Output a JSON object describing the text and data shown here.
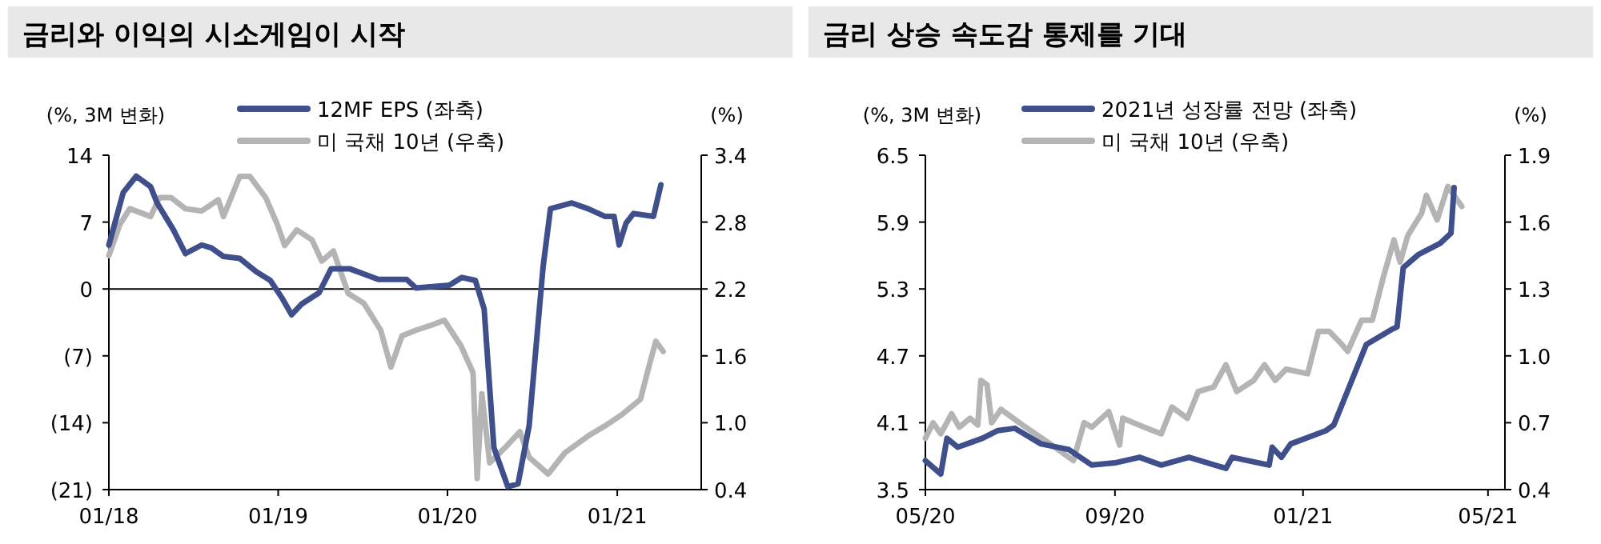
{
  "chart_data": [
    {
      "type": "line",
      "title": "금리와 이익의 시소게임이 시작",
      "ylabel": "(%, 3M 변화)",
      "y2label": "(%)",
      "legend": "top",
      "xlim": [
        "2018-01-01",
        "2021-07-01"
      ],
      "xticks": [
        {
          "value": "2018-01-01",
          "label": "01/18"
        },
        {
          "value": "2019-01-01",
          "label": "01/19"
        },
        {
          "value": "2020-01-01",
          "label": "01/20"
        },
        {
          "value": "2021-01-01",
          "label": "01/21"
        }
      ],
      "ylim": [
        -21,
        14
      ],
      "yticks": [
        {
          "value": -21,
          "label": "(21)"
        },
        {
          "value": -14,
          "label": "(14)"
        },
        {
          "value": -7,
          "label": "(7)"
        },
        0,
        7,
        14
      ],
      "y2lim": [
        0.4,
        3.4
      ],
      "y2ticks": [
        {
          "value": 0.4,
          "label": "0.4"
        },
        {
          "value": 1.0,
          "label": "1.0"
        },
        {
          "value": 1.6,
          "label": "1.6"
        },
        {
          "value": 2.2,
          "label": "2.2"
        },
        {
          "value": 2.8,
          "label": "2.8"
        },
        {
          "value": 3.4,
          "label": "3.4"
        }
      ],
      "ref_lines": [
        {
          "axis": "y",
          "value": 0,
          "color": "#000000"
        }
      ],
      "series": [
        {
          "name": "12MF EPS (좌축)",
          "color": "#3f4f8c",
          "x": [
            "2018-01-01",
            "2018-02-01",
            "2018-03-01",
            "2018-04-01",
            "2018-04-15",
            "2018-05-20",
            "2018-06-15",
            "2018-07-20",
            "2018-08-10",
            "2018-09-05",
            "2018-10-10",
            "2018-11-15",
            "2018-12-15",
            "2019-01-10",
            "2019-01-30",
            "2019-02-20",
            "2019-03-30",
            "2019-04-25",
            "2019-06-05",
            "2019-08-05",
            "2019-10-05",
            "2019-10-25",
            "2020-01-05",
            "2020-02-01",
            "2020-03-01",
            "2020-03-20",
            "2020-04-10",
            "2020-05-10",
            "2020-06-01",
            "2020-06-25",
            "2020-07-25",
            "2020-08-10",
            "2020-09-25",
            "2020-10-30",
            "2020-12-05",
            "2020-12-25",
            "2021-01-05",
            "2021-01-20",
            "2021-02-05",
            "2021-03-20",
            "2021-04-05"
          ],
          "values": [
            4.6,
            10.1,
            11.8,
            10.7,
            9.0,
            6.2,
            3.7,
            4.6,
            4.3,
            3.4,
            3.2,
            1.8,
            0.9,
            -1.0,
            -2.7,
            -1.6,
            -0.4,
            2.1,
            2.1,
            1.0,
            1.0,
            0.1,
            0.4,
            1.2,
            0.9,
            -2.1,
            -16.6,
            -20.7,
            -20.4,
            -14.3,
            2.3,
            8.4,
            9.0,
            8.4,
            7.6,
            7.6,
            4.6,
            6.9,
            7.9,
            7.6,
            10.9
          ]
        },
        {
          "name": "미 국채 10년 (우축)",
          "color": "#b4b4b4",
          "axis": "y2",
          "x": [
            "2018-01-01",
            "2018-01-25",
            "2018-02-15",
            "2018-04-01",
            "2018-04-20",
            "2018-05-15",
            "2018-06-15",
            "2018-07-20",
            "2018-08-25",
            "2018-09-05",
            "2018-10-10",
            "2018-11-01",
            "2018-12-05",
            "2018-12-30",
            "2019-01-15",
            "2019-02-10",
            "2019-03-15",
            "2019-04-05",
            "2019-04-30",
            "2019-06-01",
            "2019-07-05",
            "2019-08-10",
            "2019-09-01",
            "2019-09-25",
            "2019-10-25",
            "2019-12-01",
            "2019-12-25",
            "2020-01-30",
            "2020-02-25",
            "2020-03-05",
            "2020-03-15",
            "2020-04-01",
            "2020-05-05",
            "2020-06-05",
            "2020-06-25",
            "2020-08-05",
            "2020-09-10",
            "2020-10-30",
            "2020-12-05",
            "2021-01-10",
            "2021-02-20",
            "2021-03-10",
            "2021-03-25",
            "2021-04-10"
          ],
          "values": [
            2.5,
            2.78,
            2.92,
            2.85,
            3.02,
            3.02,
            2.92,
            2.9,
            3.0,
            2.85,
            3.21,
            3.21,
            3.02,
            2.78,
            2.59,
            2.73,
            2.64,
            2.45,
            2.54,
            2.16,
            2.07,
            1.83,
            1.5,
            1.78,
            1.83,
            1.88,
            1.92,
            1.69,
            1.45,
            0.5,
            1.26,
            0.64,
            0.78,
            0.92,
            0.69,
            0.54,
            0.73,
            0.88,
            0.97,
            1.07,
            1.21,
            1.5,
            1.73,
            1.64
          ]
        }
      ]
    },
    {
      "type": "line",
      "title": "금리 상승 속도감 통제를 기대",
      "ylabel": "(%, 3M 변화)",
      "y2label": "(%)",
      "legend": "top",
      "xlim": [
        "2020-05-01",
        "2021-05-12"
      ],
      "xticks": [
        {
          "value": "2020-05-01",
          "label": "05/20"
        },
        {
          "value": "2020-09-01",
          "label": "09/20"
        },
        {
          "value": "2021-01-01",
          "label": "01/21"
        },
        {
          "value": "2021-05-01",
          "label": "05/21"
        }
      ],
      "ylim": [
        3.5,
        6.5
      ],
      "yticks": [
        3.5,
        4.1,
        4.7,
        5.3,
        5.9,
        6.5
      ],
      "y2lim": [
        0.4,
        1.9
      ],
      "y2ticks": [
        0.4,
        {
          "value": 0.7,
          "label": "0.7"
        },
        {
          "value": 1.0,
          "label": "1.0"
        },
        1.3,
        1.6,
        1.9
      ],
      "series": [
        {
          "name": "2021년 성장률 전망 (좌축)",
          "color": "#3f4f8c",
          "x": [
            "2020-05-01",
            "2020-05-11",
            "2020-05-15",
            "2020-05-22",
            "2020-06-07",
            "2020-06-17",
            "2020-06-28",
            "2020-07-15",
            "2020-08-02",
            "2020-08-17",
            "2020-09-01",
            "2020-09-17",
            "2020-10-01",
            "2020-10-19",
            "2020-11-12",
            "2020-11-16",
            "2020-12-10",
            "2020-12-12",
            "2020-12-18",
            "2020-12-24",
            "2021-01-16",
            "2021-01-21",
            "2021-02-11",
            "2021-02-28",
            "2021-03-03",
            "2021-03-07",
            "2021-03-17",
            "2021-03-31",
            "2021-04-07",
            "2021-04-09"
          ],
          "values": [
            3.76,
            3.64,
            3.96,
            3.88,
            3.96,
            4.03,
            4.05,
            3.91,
            3.86,
            3.72,
            3.74,
            3.79,
            3.72,
            3.79,
            3.69,
            3.79,
            3.72,
            3.88,
            3.79,
            3.91,
            4.03,
            4.08,
            4.8,
            4.94,
            4.96,
            5.49,
            5.61,
            5.71,
            5.8,
            6.21
          ]
        },
        {
          "name": "미 국채 10년 (우축)",
          "color": "#b4b4b4",
          "axis": "y2",
          "x": [
            "2020-05-01",
            "2020-05-06",
            "2020-05-11",
            "2020-05-18",
            "2020-05-23",
            "2020-05-30",
            "2020-06-04",
            "2020-06-06",
            "2020-06-10",
            "2020-06-13",
            "2020-06-19",
            "2020-07-05",
            "2020-07-22",
            "2020-08-05",
            "2020-08-12",
            "2020-08-17",
            "2020-08-28",
            "2020-09-04",
            "2020-09-06",
            "2020-09-20",
            "2020-10-01",
            "2020-10-08",
            "2020-10-18",
            "2020-10-25",
            "2020-11-04",
            "2020-11-12",
            "2020-11-19",
            "2020-11-30",
            "2020-12-07",
            "2020-12-14",
            "2020-12-21",
            "2021-01-04",
            "2021-01-11",
            "2021-01-18",
            "2021-01-25",
            "2021-01-30",
            "2021-02-08",
            "2021-02-15",
            "2021-02-22",
            "2021-03-01",
            "2021-03-05",
            "2021-03-10",
            "2021-03-19",
            "2021-03-22",
            "2021-03-29",
            "2021-04-05",
            "2021-04-14"
          ],
          "values": [
            0.63,
            0.7,
            0.65,
            0.74,
            0.68,
            0.72,
            0.69,
            0.89,
            0.87,
            0.7,
            0.76,
            0.68,
            0.6,
            0.53,
            0.7,
            0.68,
            0.75,
            0.6,
            0.72,
            0.68,
            0.65,
            0.77,
            0.72,
            0.84,
            0.86,
            0.96,
            0.84,
            0.89,
            0.96,
            0.89,
            0.94,
            0.92,
            1.11,
            1.11,
            1.06,
            1.02,
            1.16,
            1.16,
            1.35,
            1.52,
            1.42,
            1.54,
            1.64,
            1.72,
            1.61,
            1.76,
            1.67
          ]
        }
      ]
    }
  ]
}
